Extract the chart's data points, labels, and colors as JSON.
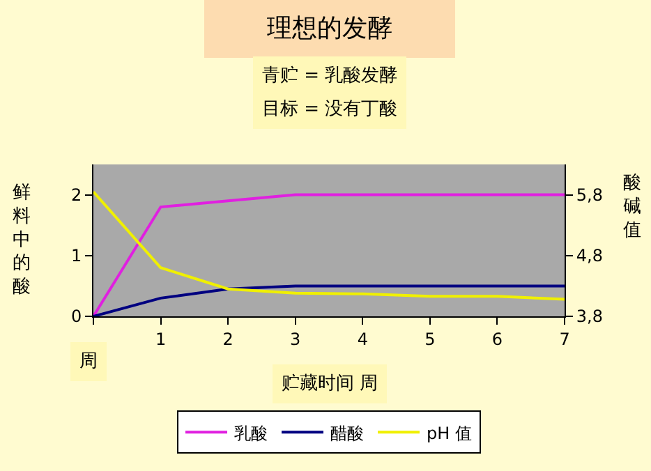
{
  "chart_data": {
    "type": "line",
    "title": "理想的发酵",
    "subtitle": "青贮 = 乳酸发酵",
    "xlabel": "贮藏时间 周",
    "ylabel": "鲜料中的酸",
    "y2label": "酸碱值",
    "annotations": [
      "目标 = 没有丁酸",
      "周"
    ],
    "x": [
      0,
      1,
      2,
      3,
      4,
      5,
      6,
      7
    ],
    "xlim": [
      0,
      7
    ],
    "xticks": [
      {
        "value": 0,
        "label": null
      },
      1,
      2,
      3,
      4,
      5,
      6,
      7
    ],
    "ylim": [
      0,
      2.5
    ],
    "yticks": [
      0,
      1,
      2
    ],
    "y2lim": [
      3.8,
      6.3
    ],
    "y2ticks": [
      {
        "value": 3.8,
        "label": "3,8"
      },
      {
        "value": 4.8,
        "label": "4,8"
      },
      {
        "value": 5.8,
        "label": "5,8"
      }
    ],
    "series": [
      {
        "name": "乳酸",
        "color": "#e020e0",
        "values": [
          0,
          1.8,
          1.9,
          2,
          2,
          2,
          2,
          2
        ]
      },
      {
        "name": "醋酸",
        "color": "#000080",
        "values": [
          0,
          0.3,
          0.45,
          0.5,
          0.5,
          0.5,
          0.5,
          0.5
        ]
      },
      {
        "name": "pH 值",
        "color": "#f0f000",
        "axis": "y2",
        "values": [
          5.85,
          4.6,
          4.25,
          4.18,
          4.17,
          4.13,
          4.13,
          4.08
        ]
      }
    ],
    "grid": false,
    "legend": "bottom",
    "marker": "none",
    "line_style": "solid"
  }
}
